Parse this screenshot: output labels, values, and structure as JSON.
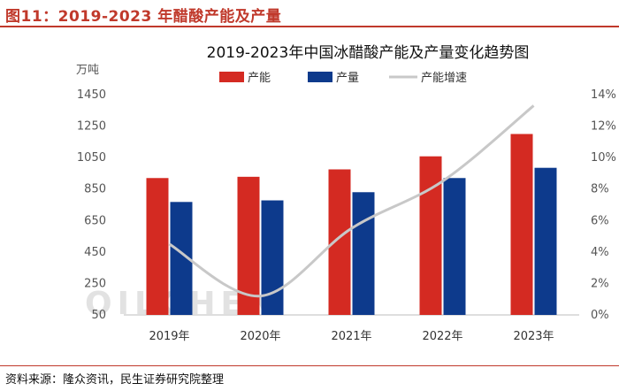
{
  "figure_title": "图11：2019-2023 年醋酸产能及产量",
  "source": "资料来源：隆众资讯，民生证券研究院整理",
  "watermark": "OILCHEM",
  "chart_data": {
    "type": "bar",
    "title": "2019-2023年中国冰醋酸产能及产量变化趋势图",
    "ylabel": "万吨",
    "categories": [
      "2019年",
      "2020年",
      "2021年",
      "2022年",
      "2023年"
    ],
    "ylim": [
      50,
      1450
    ],
    "yticks": [
      50,
      250,
      450,
      650,
      850,
      1050,
      1250,
      1450
    ],
    "y2lim": [
      0,
      14
    ],
    "y2ticks": [
      "0%",
      "2%",
      "4%",
      "6%",
      "8%",
      "10%",
      "12%",
      "14%"
    ],
    "series": [
      {
        "name": "产能",
        "kind": "bar",
        "axis": "left",
        "color": "#d42a22",
        "values": [
          920,
          928,
          975,
          1058,
          1200
        ]
      },
      {
        "name": "产量",
        "kind": "bar",
        "axis": "left",
        "color": "#0d3a8c",
        "values": [
          768,
          778,
          830,
          920,
          985
        ]
      },
      {
        "name": "产能增速",
        "kind": "line",
        "axis": "right",
        "color": "#c8c8c8",
        "values": [
          4.5,
          1.2,
          5.5,
          8.5,
          13.3
        ]
      }
    ]
  }
}
